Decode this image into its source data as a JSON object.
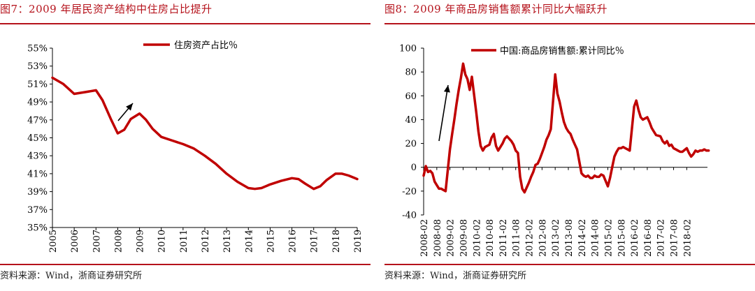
{
  "figures": [
    {
      "title": "图7：2009 年居民资产结构中住房占比提升",
      "source": "资料来源：Wind，浙商证券研究所"
    },
    {
      "title": "图8：2009 年商品房销售额累计同比大幅跃升",
      "source": "资料来源：Wind，浙商证券研究所"
    }
  ],
  "colors": {
    "accent": "#b5121b",
    "series": "#c00000",
    "axis": "#000000"
  },
  "chart_data": [
    {
      "type": "line",
      "title": "",
      "xlabel": "",
      "ylabel": "",
      "ylim": [
        35,
        55
      ],
      "y_ticks": [
        35,
        37,
        39,
        41,
        43,
        45,
        47,
        49,
        51,
        53,
        55
      ],
      "y_tick_labels": [
        "35%",
        "37%",
        "39%",
        "41%",
        "43%",
        "45%",
        "47%",
        "49%",
        "51%",
        "53%",
        "55%"
      ],
      "x_tick_labels": [
        "2005",
        "2006",
        "2007",
        "2008",
        "2009",
        "2010",
        "2011",
        "2012",
        "2013",
        "2014",
        "2015",
        "2016",
        "2017",
        "2018",
        "2019"
      ],
      "xlim": [
        2005,
        2019
      ],
      "grid": false,
      "legend_position": "top-center",
      "annotation": "arrow-up",
      "series": [
        {
          "name": "住房资产占比％",
          "x": [
            2005,
            2005.5,
            2006,
            2006.5,
            2007,
            2007.3,
            2007.7,
            2008,
            2008.3,
            2008.6,
            2009,
            2009.3,
            2009.6,
            2010,
            2010.5,
            2011,
            2011.5,
            2012,
            2012.5,
            2013,
            2013.5,
            2014,
            2014.3,
            2014.6,
            2015,
            2015.5,
            2016,
            2016.3,
            2016.6,
            2017,
            2017.3,
            2017.6,
            2018,
            2018.3,
            2018.6,
            2019
          ],
          "y": [
            51.7,
            51.0,
            49.9,
            50.1,
            50.3,
            49.2,
            47.0,
            45.5,
            45.9,
            47.1,
            47.7,
            47.0,
            46.0,
            45.1,
            44.7,
            44.3,
            43.8,
            43.0,
            42.1,
            41.0,
            40.1,
            39.4,
            39.3,
            39.4,
            39.8,
            40.2,
            40.5,
            40.4,
            39.9,
            39.3,
            39.6,
            40.3,
            41.0,
            41.0,
            40.8,
            40.4
          ]
        }
      ]
    },
    {
      "type": "line",
      "title": "",
      "xlabel": "",
      "ylabel": "",
      "ylim": [
        -40,
        100
      ],
      "y_ticks": [
        -40,
        -20,
        0,
        20,
        40,
        60,
        80,
        100
      ],
      "y_tick_labels": [
        "-40",
        "-20",
        "0",
        "20",
        "40",
        "60",
        "80",
        "100"
      ],
      "x_tick_labels": [
        "2008-02",
        "2008-08",
        "2009-02",
        "2009-08",
        "2010-02",
        "2010-08",
        "2011-02",
        "2011-08",
        "2012-02",
        "2012-08",
        "2013-02",
        "2013-08",
        "2014-02",
        "2014-08",
        "2015-02",
        "2015-08",
        "2016-02",
        "2016-08",
        "2017-02",
        "2017-08",
        "2018-02"
      ],
      "x_tick_dates": [
        "2008-02",
        "2008-08",
        "2009-02",
        "2009-08",
        "2010-02",
        "2010-08",
        "2011-02",
        "2011-08",
        "2012-02",
        "2012-08",
        "2013-02",
        "2013-08",
        "2014-02",
        "2014-08",
        "2015-02",
        "2015-08",
        "2016-02",
        "2016-08",
        "2017-02",
        "2017-08",
        "2018-02"
      ],
      "xlim": [
        "2008-02",
        "2019-02"
      ],
      "grid": false,
      "legend_position": "top-center",
      "annotation": "arrow-up",
      "series": [
        {
          "name": "中国:商品房销售额:累计同比％",
          "x": [
            "2008-02",
            "2008-03",
            "2008-04",
            "2008-05",
            "2008-06",
            "2008-07",
            "2008-08",
            "2008-09",
            "2008-10",
            "2008-11",
            "2008-12",
            "2009-02",
            "2009-03",
            "2009-04",
            "2009-05",
            "2009-06",
            "2009-07",
            "2009-08",
            "2009-09",
            "2009-10",
            "2009-11",
            "2009-12",
            "2010-02",
            "2010-03",
            "2010-04",
            "2010-05",
            "2010-06",
            "2010-07",
            "2010-08",
            "2010-09",
            "2010-10",
            "2010-11",
            "2010-12",
            "2011-02",
            "2011-03",
            "2011-04",
            "2011-05",
            "2011-06",
            "2011-07",
            "2011-08",
            "2011-09",
            "2011-10",
            "2011-11",
            "2011-12",
            "2012-02",
            "2012-03",
            "2012-04",
            "2012-05",
            "2012-06",
            "2012-07",
            "2012-08",
            "2012-09",
            "2012-10",
            "2012-11",
            "2012-12",
            "2013-02",
            "2013-03",
            "2013-04",
            "2013-05",
            "2013-06",
            "2013-07",
            "2013-08",
            "2013-09",
            "2013-10",
            "2013-11",
            "2013-12",
            "2014-02",
            "2014-03",
            "2014-04",
            "2014-05",
            "2014-06",
            "2014-07",
            "2014-08",
            "2014-09",
            "2014-10",
            "2014-11",
            "2014-12",
            "2015-02",
            "2015-03",
            "2015-04",
            "2015-05",
            "2015-06",
            "2015-07",
            "2015-08",
            "2015-09",
            "2015-10",
            "2015-11",
            "2015-12",
            "2016-02",
            "2016-03",
            "2016-04",
            "2016-05",
            "2016-06",
            "2016-07",
            "2016-08",
            "2016-09",
            "2016-10",
            "2016-11",
            "2016-12",
            "2017-02",
            "2017-03",
            "2017-04",
            "2017-05",
            "2017-06",
            "2017-07",
            "2017-08",
            "2017-09",
            "2017-10",
            "2017-11",
            "2017-12",
            "2018-02",
            "2018-03",
            "2018-04",
            "2018-05",
            "2018-06",
            "2018-07",
            "2018-08",
            "2018-09",
            "2018-10",
            "2018-11",
            "2018-12"
          ],
          "y": [
            -7,
            1,
            -4,
            -3,
            -5,
            -12,
            -15,
            -18,
            -18,
            -19,
            -20,
            15,
            28,
            40,
            53,
            65,
            75,
            87,
            78,
            74,
            65,
            76,
            46,
            30,
            18,
            14,
            17,
            18,
            19,
            25,
            28,
            18,
            14,
            20,
            24,
            26,
            24,
            22,
            19,
            14,
            12,
            -8,
            -18,
            -21,
            -13,
            -8,
            -4,
            2,
            3,
            7,
            12,
            17,
            23,
            27,
            32,
            78,
            62,
            55,
            46,
            38,
            33,
            30,
            28,
            23,
            19,
            15,
            -5,
            -7,
            -8,
            -7,
            -9,
            -9,
            -7,
            -8,
            -8,
            -6,
            -7,
            -16,
            -9,
            0,
            9,
            13,
            16,
            16,
            17,
            16,
            15,
            14,
            51,
            56,
            48,
            42,
            40,
            41,
            42,
            38,
            33,
            30,
            27,
            26,
            22,
            20,
            22,
            18,
            19,
            16,
            15,
            14,
            13,
            13,
            16,
            12,
            9,
            11,
            14,
            13,
            14,
            14,
            15,
            14,
            14
          ]
        }
      ]
    }
  ]
}
